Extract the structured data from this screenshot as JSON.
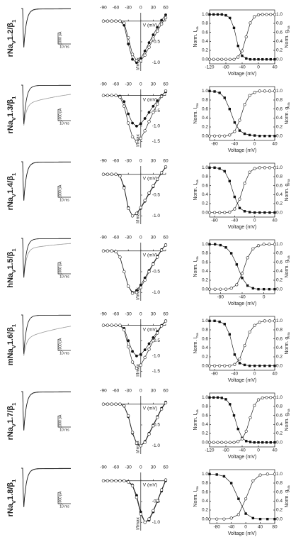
{
  "figure": {
    "iv_x": [
      -90,
      -80,
      -70,
      -60,
      -50,
      -40,
      -30,
      -20,
      -10,
      0,
      10,
      20,
      30,
      40,
      50,
      60
    ],
    "iv_xlim": [
      -90,
      60
    ],
    "iv_xticks": [
      -90,
      -60,
      -30,
      0,
      30,
      60
    ],
    "iv_xlabel": "V (mV)",
    "iv_ylabel": "I/Imax",
    "ss_ylim": [
      -0.1,
      1.1
    ],
    "ss_yticks": [
      {
        "value": 0,
        "label": "0.0"
      },
      {
        "value": 0.2,
        "label": "0.2"
      },
      {
        "value": 0.4,
        "label": "0.4"
      },
      {
        "value": 0.6,
        "label": "0.6"
      },
      {
        "value": 0.8,
        "label": "0.8"
      },
      {
        "value": 1,
        "label": "1.0"
      }
    ],
    "ss_xlabel": "Voltage (mV)",
    "ss_ylabel_left": [
      "Norm. I",
      "Na"
    ],
    "ss_ylabel_right": [
      "Norm. g",
      "Na"
    ],
    "rows": [
      {
        "label": [
          "rNa",
          "V",
          "1.2/β",
          "1"
        ],
        "scale_current": "1000 pA",
        "scale_time": "10 ms",
        "iv": {
          "ylim": [
            -1.2,
            0.2
          ],
          "yticks": [
            -0.5,
            {
              "value": -1,
              "label": "-1.0"
            }
          ],
          "series": [
            {
              "values": [
                0,
                0,
                0,
                0,
                0,
                -0.1,
                -0.55,
                -0.92,
                -1.0,
                -0.9,
                -0.72,
                -0.52,
                -0.33,
                -0.15,
                0.02,
                0.15
              ]
            },
            {
              "values": [
                0,
                0,
                0,
                0,
                0,
                -0.05,
                -0.4,
                -0.8,
                -0.95,
                -0.95,
                -0.82,
                -0.63,
                -0.43,
                -0.24,
                -0.07,
                0.08
              ]
            }
          ]
        },
        "ss": {
          "xlim": [
            -120,
            40
          ],
          "xticks": [
            -120,
            -80,
            -40,
            0,
            40
          ],
          "x": [
            -120,
            -110,
            -100,
            -90,
            -80,
            -70,
            -60,
            -50,
            -40,
            -30,
            -20,
            -10,
            0,
            10,
            20,
            30,
            40
          ],
          "inactivation": [
            1,
            1,
            1,
            1,
            0.98,
            0.92,
            0.7,
            0.3,
            0.08,
            0.02,
            0,
            0,
            0,
            0,
            0,
            0,
            0
          ],
          "activation": [
            0,
            0,
            0,
            0,
            0,
            0,
            0,
            0.05,
            0.19,
            0.5,
            0.81,
            0.95,
            0.99,
            1,
            1,
            1,
            1
          ]
        }
      },
      {
        "label": [
          "rNa",
          "V",
          "1.3/β",
          "1"
        ],
        "scale_current": "1000 pA",
        "scale_time": "10 ms",
        "iv": {
          "ylim": [
            -1.7,
            0.2
          ],
          "yticks": [
            -0.5,
            {
              "value": -1,
              "label": "-1.0"
            },
            -1.5
          ],
          "series": [
            {
              "values": [
                0,
                0,
                0,
                0,
                -0.02,
                -0.2,
                -0.6,
                -0.9,
                -1.0,
                -0.92,
                -0.75,
                -0.55,
                -0.35,
                -0.17,
                0,
                0.12
              ]
            },
            {
              "values": [
                0,
                0,
                0,
                0,
                -0.05,
                -0.35,
                -0.9,
                -1.35,
                -1.5,
                -1.4,
                -1.15,
                -0.85,
                -0.55,
                -0.28,
                -0.03,
                0.15
              ]
            }
          ]
        },
        "ss": {
          "xlim": [
            -90,
            40
          ],
          "xticks": [
            -80,
            -40,
            0,
            40
          ],
          "x": [
            -90,
            -80,
            -70,
            -60,
            -50,
            -40,
            -30,
            -20,
            -10,
            0,
            10,
            20,
            30,
            40
          ],
          "inactivation": [
            1,
            0.99,
            0.96,
            0.85,
            0.6,
            0.3,
            0.12,
            0.05,
            0.02,
            0.01,
            0,
            0,
            0,
            0
          ],
          "activation": [
            0,
            0,
            0,
            0,
            0.02,
            0.1,
            0.35,
            0.7,
            0.9,
            0.97,
            1,
            1,
            1,
            1
          ]
        }
      },
      {
        "label": [
          "rNa",
          "V",
          "1.4/β",
          "1"
        ],
        "scale_current": "1000 pA",
        "scale_time": "10 ms",
        "iv": {
          "ylim": [
            -1.2,
            0.2
          ],
          "yticks": [
            -0.5,
            {
              "value": -1,
              "label": "-1.0"
            }
          ],
          "series": [
            {
              "values": [
                0,
                0,
                0,
                0,
                -0.03,
                -0.3,
                -0.8,
                -1.0,
                -0.95,
                -0.82,
                -0.65,
                -0.47,
                -0.3,
                -0.13,
                0.03,
                0.17
              ]
            },
            {
              "values": [
                0,
                0,
                0,
                0,
                -0.04,
                -0.33,
                -0.82,
                -1.0,
                -0.94,
                -0.8,
                -0.63,
                -0.45,
                -0.28,
                -0.12,
                0.04,
                0.18
              ]
            }
          ]
        },
        "ss": {
          "xlim": [
            -90,
            40
          ],
          "xticks": [
            -80,
            -40,
            0,
            40
          ],
          "x": [
            -90,
            -80,
            -70,
            -60,
            -50,
            -40,
            -30,
            -20,
            -10,
            0,
            10,
            20,
            30,
            40
          ],
          "inactivation": [
            1,
            1,
            0.98,
            0.92,
            0.7,
            0.35,
            0.1,
            0.03,
            0.01,
            0,
            0,
            0,
            0,
            0
          ],
          "activation": [
            0,
            0,
            0,
            0,
            0.01,
            0.08,
            0.3,
            0.65,
            0.9,
            0.98,
            1,
            1,
            1,
            1
          ]
        }
      },
      {
        "label": [
          "hNa",
          "V",
          "1.5/β",
          "1"
        ],
        "scale_current": "1000 pA",
        "scale_time": "10 ms",
        "iv": {
          "ylim": [
            -1.2,
            0.2
          ],
          "yticks": [
            -0.5,
            {
              "value": -1,
              "label": "-1.0"
            }
          ],
          "series": [
            {
              "values": [
                0,
                0,
                0,
                -0.02,
                -0.15,
                -0.5,
                -0.85,
                -1.0,
                -0.95,
                -0.82,
                -0.65,
                -0.47,
                -0.3,
                -0.13,
                0.03,
                0.15
              ]
            },
            {
              "values": [
                0,
                0,
                0,
                -0.02,
                -0.15,
                -0.5,
                -0.85,
                -1.02,
                -1.0,
                -0.88,
                -0.7,
                -0.5,
                -0.32,
                -0.15,
                0.02,
                0.14
              ]
            }
          ]
        },
        "ss": {
          "xlim": [
            -100,
            20
          ],
          "xticks": [
            -80,
            -40,
            0
          ],
          "x": [
            -100,
            -90,
            -80,
            -70,
            -60,
            -50,
            -40,
            -30,
            -20,
            -10,
            0,
            10,
            20
          ],
          "inactivation": [
            1,
            1,
            0.98,
            0.93,
            0.8,
            0.55,
            0.25,
            0.08,
            0.02,
            0,
            0,
            0,
            0
          ],
          "activation": [
            0,
            0,
            0,
            0,
            0.02,
            0.1,
            0.35,
            0.7,
            0.9,
            0.97,
            1,
            1,
            1
          ]
        }
      },
      {
        "label": [
          "mNa",
          "V",
          "1.6/β",
          "1"
        ],
        "scale_current": "1000 pA",
        "scale_time": "10 ms",
        "iv": {
          "ylim": [
            -1.7,
            0.2
          ],
          "yticks": [
            -0.5,
            {
              "value": -1,
              "label": "-1.0"
            },
            -1.5
          ],
          "series": [
            {
              "values": [
                0,
                0,
                0,
                0,
                0,
                -0.1,
                -0.5,
                -0.85,
                -1.0,
                -0.95,
                -0.8,
                -0.6,
                -0.4,
                -0.2,
                0,
                0.15
              ]
            },
            {
              "values": [
                0,
                0,
                0,
                0,
                0,
                -0.15,
                -0.7,
                -1.2,
                -1.4,
                -1.3,
                -1.05,
                -0.78,
                -0.5,
                -0.25,
                -0.02,
                0.14
              ]
            }
          ]
        },
        "ss": {
          "xlim": [
            -90,
            40
          ],
          "xticks": [
            -80,
            -40,
            0,
            40
          ],
          "x": [
            -90,
            -80,
            -70,
            -60,
            -50,
            -40,
            -30,
            -20,
            -10,
            0,
            10,
            20,
            30,
            40
          ],
          "inactivation": [
            1,
            1,
            0.98,
            0.93,
            0.7,
            0.25,
            0.06,
            0.02,
            0,
            0,
            0,
            0,
            0,
            0
          ],
          "activation": [
            0,
            0,
            0,
            0,
            0,
            0.03,
            0.15,
            0.45,
            0.75,
            0.9,
            0.97,
            1,
            1,
            1
          ]
        }
      },
      {
        "label": [
          "rNa",
          "V",
          "1.7/β",
          "1"
        ],
        "scale_current": "1000 pA",
        "scale_time": "10 ms",
        "iv": {
          "ylim": [
            -1.2,
            0.2
          ],
          "yticks": [
            -0.5,
            {
              "value": -1,
              "label": "-1.0"
            }
          ],
          "series": [
            {
              "values": [
                0,
                0,
                0,
                0,
                0,
                -0.05,
                -0.3,
                -0.7,
                -0.95,
                -1.0,
                -0.9,
                -0.7,
                -0.5,
                -0.3,
                -0.1,
                0.05
              ]
            },
            {
              "values": [
                0,
                0,
                0,
                0,
                0,
                -0.04,
                -0.28,
                -0.68,
                -0.94,
                -1.0,
                -0.92,
                -0.72,
                -0.52,
                -0.32,
                -0.12,
                0.03
              ]
            }
          ]
        },
        "ss": {
          "xlim": [
            -120,
            40
          ],
          "xticks": [
            -120,
            -80,
            -40,
            0,
            40
          ],
          "x": [
            -120,
            -110,
            -100,
            -90,
            -80,
            -70,
            -60,
            -50,
            -40,
            -30,
            -20,
            -10,
            0,
            10,
            20,
            30,
            40
          ],
          "inactivation": [
            1,
            1,
            1,
            0.99,
            0.96,
            0.85,
            0.6,
            0.3,
            0.1,
            0.03,
            0.01,
            0,
            0,
            0,
            0,
            0,
            0
          ],
          "activation": [
            0,
            0,
            0,
            0,
            0,
            0,
            0,
            0.02,
            0.08,
            0.25,
            0.55,
            0.82,
            0.95,
            0.99,
            1,
            1,
            1
          ]
        }
      },
      {
        "label": [
          "rNa",
          "V",
          "1.8/β",
          "1"
        ],
        "scale_current": "1000 pA",
        "scale_time": "10 ms",
        "iv": {
          "ylim": [
            -1.2,
            0.2
          ],
          "yticks": [
            -0.5,
            {
              "value": -1,
              "label": "-1.0"
            }
          ],
          "series": [
            {
              "values": [
                0,
                0,
                0,
                0,
                0,
                0,
                -0.02,
                -0.1,
                -0.35,
                -0.75,
                -1.0,
                -0.95,
                -0.75,
                -0.5,
                -0.25,
                0
              ]
            },
            {
              "values": [
                0,
                0,
                0,
                0,
                0,
                0,
                -0.03,
                -0.12,
                -0.4,
                -0.8,
                -1.0,
                -0.92,
                -0.72,
                -0.48,
                -0.22,
                0.02
              ]
            }
          ]
        },
        "ss": {
          "xlim": [
            -100,
            80
          ],
          "xticks": [
            -80,
            -40,
            0,
            40,
            80
          ],
          "x": [
            -100,
            -80,
            -60,
            -40,
            -20,
            0,
            20,
            40,
            60,
            80
          ],
          "inactivation": [
            1,
            0.99,
            0.95,
            0.8,
            0.45,
            0.12,
            0.02,
            0,
            0,
            0
          ],
          "activation": [
            0,
            0,
            0,
            0.02,
            0.1,
            0.45,
            0.85,
            0.98,
            1,
            1
          ]
        }
      }
    ]
  }
}
